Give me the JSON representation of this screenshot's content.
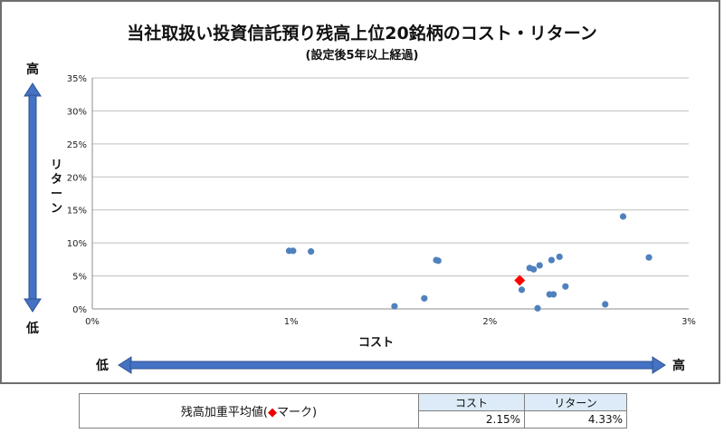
{
  "chart_data": {
    "type": "scatter",
    "title": "当社取扱い投資信託預り残高上位20銘柄のコスト・リターン",
    "subtitle": "(設定後5年以上経過)",
    "xlabel": "コスト",
    "ylabel": "リターン",
    "x_low_label": "低",
    "x_high_label": "高",
    "y_low_label": "低",
    "y_high_label": "高",
    "xlim": [
      0,
      3
    ],
    "ylim": [
      0,
      35
    ],
    "x_ticks": [
      "0%",
      "1%",
      "2%",
      "3%"
    ],
    "y_ticks": [
      "0%",
      "5%",
      "10%",
      "15%",
      "20%",
      "25%",
      "30%",
      "35%"
    ],
    "grid": "horizontal",
    "series": [
      {
        "marker": "circle",
        "color": "#4f81bd",
        "points": [
          [
            0.99,
            8.8
          ],
          [
            1.01,
            8.8
          ],
          [
            1.1,
            8.7
          ],
          [
            1.52,
            0.4
          ],
          [
            1.67,
            1.6
          ],
          [
            1.73,
            7.4
          ],
          [
            1.74,
            7.3
          ],
          [
            2.16,
            2.9
          ],
          [
            2.2,
            6.2
          ],
          [
            2.22,
            6.0
          ],
          [
            2.24,
            0.1
          ],
          [
            2.25,
            6.6
          ],
          [
            2.3,
            2.2
          ],
          [
            2.31,
            7.4
          ],
          [
            2.32,
            2.2
          ],
          [
            2.35,
            7.9
          ],
          [
            2.38,
            3.4
          ],
          [
            2.58,
            0.7
          ],
          [
            2.67,
            14.0
          ],
          [
            2.8,
            7.8
          ]
        ]
      },
      {
        "name": "残高加重平均値",
        "marker": "diamond",
        "color": "#ff0000",
        "points": [
          [
            2.15,
            4.33
          ]
        ]
      }
    ]
  },
  "summary": {
    "label_prefix": "残高加重平均値(",
    "label_marker": "◆",
    "label_suffix": "マーク)",
    "cost_header": "コスト",
    "return_header": "リターン",
    "cost_value": "2.15%",
    "return_value": "4.33%"
  },
  "colors": {
    "point": "#4f81bd",
    "average": "#ff0000",
    "arrow": "#4472c4",
    "grid": "#bfbfbf"
  }
}
